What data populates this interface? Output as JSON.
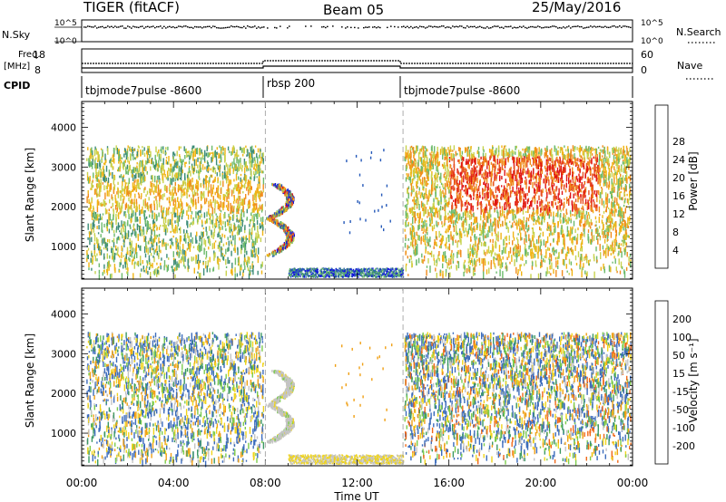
{
  "header": {
    "radar": "TIGER (fitACF)",
    "beam": "Beam 05",
    "date": "25/May/2016"
  },
  "strip_labels": {
    "nsky": "N.Sky",
    "nsearch": "N.Search",
    "freq_line1": "Freq.",
    "freq_line2": "[MHz]",
    "nave": "Nave",
    "cpid": "CPID",
    "nsky_ticks": [
      "10^5",
      "10^0"
    ],
    "nsearch_ticks": [
      "10^5",
      "10^0"
    ],
    "freq_ticks": [
      "18",
      "8"
    ],
    "nave_ticks": [
      "60",
      "0"
    ]
  },
  "cpid_segments": [
    {
      "label": "tbjmode7pulse -8600",
      "start": "00:00",
      "end": "08:00"
    },
    {
      "label": "rbsp 200",
      "start": "08:00",
      "end": "14:00"
    },
    {
      "label": "tbjmode7pulse -8600",
      "start": "14:00",
      "end": "24:00"
    }
  ],
  "chart_data": [
    {
      "type": "heatmap",
      "title": "",
      "xlabel": "",
      "ylabel": "Slant Range [km]",
      "x_ticks": [
        "00:00",
        "04:00",
        "08:00",
        "12:00",
        "16:00",
        "20:00",
        "00:00"
      ],
      "y_ticks": [
        1000,
        2000,
        3000,
        4000
      ],
      "xlim_hours": [
        0,
        24
      ],
      "ylim_km": [
        180,
        4650
      ],
      "colorbar": {
        "label": "Power [dB]",
        "ticks": [
          "4",
          "8",
          "12",
          "16",
          "20",
          "24",
          "28"
        ],
        "range": [
          0,
          30
        ],
        "colors": [
          "#1515e0",
          "#2458b8",
          "#3c8c78",
          "#6cba6c",
          "#c8d24c",
          "#f0b414",
          "#f08c1c",
          "#e85020",
          "#e01414"
        ]
      },
      "regions": [
        {
          "name": "scatter-a",
          "t": [
            0.2,
            7.8
          ],
          "km": [
            300,
            3500
          ],
          "level": "12-20 dB"
        },
        {
          "name": "band-a",
          "t": [
            0.2,
            7.8
          ],
          "km": [
            1950,
            2700
          ],
          "level": "16-22 dB"
        },
        {
          "name": "echo-arc",
          "t": [
            8.0,
            9.2
          ],
          "km": [
            800,
            2600
          ],
          "level": "8-24 dB"
        },
        {
          "name": "near-range",
          "t": [
            9.0,
            14.0
          ],
          "km": [
            250,
            450
          ],
          "level": "4-16 dB"
        },
        {
          "name": "scatter-b",
          "t": [
            14.0,
            23.9
          ],
          "km": [
            300,
            3500
          ],
          "level": "16-28 dB"
        },
        {
          "name": "band-b",
          "t": [
            16.0,
            22.0
          ],
          "km": [
            1950,
            3300
          ],
          "level": "24-30 dB"
        }
      ]
    },
    {
      "type": "heatmap",
      "title": "",
      "xlabel": "Time UT",
      "ylabel": "Slant Range [km]",
      "x_ticks": [
        "00:00",
        "04:00",
        "08:00",
        "12:00",
        "16:00",
        "20:00",
        "00:00"
      ],
      "y_ticks": [
        1000,
        2000,
        3000,
        4000
      ],
      "xlim_hours": [
        0,
        24
      ],
      "ylim_km": [
        180,
        4650
      ],
      "colorbar": {
        "label": "Velocity [m s^-1]",
        "ticks": [
          "200",
          "100",
          "50",
          "15",
          "-15",
          "-50",
          "-100",
          "-200"
        ],
        "range": [
          -250,
          250
        ],
        "colors": [
          "#2a3ca8",
          "#3c6cbc",
          "#3c9864",
          "#7ccc4c",
          "#c4c4c4",
          "#f0d41c",
          "#f0a014",
          "#f06818",
          "#e01414"
        ]
      },
      "regions": [
        {
          "name": "scatter-a",
          "t": [
            0.2,
            7.8
          ],
          "km": [
            300,
            3500
          ],
          "level": "-100 to 100 m/s"
        },
        {
          "name": "echo-arc",
          "t": [
            8.0,
            9.2
          ],
          "km": [
            800,
            2600
          ],
          "level": "-15 to 15 m/s"
        },
        {
          "name": "near-range",
          "t": [
            9.0,
            14.0
          ],
          "km": [
            250,
            450
          ],
          "level": "-50 to 15 m/s"
        },
        {
          "name": "scatter-b",
          "t": [
            14.0,
            23.9
          ],
          "km": [
            300,
            3500
          ],
          "level": "-100 to 100 m/s"
        }
      ]
    }
  ]
}
